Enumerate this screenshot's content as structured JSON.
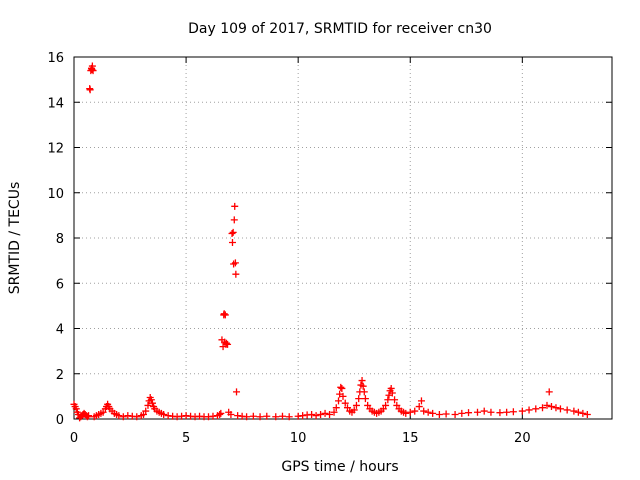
{
  "chart_data": {
    "type": "scatter",
    "title": "Day 109 of 2017, SRMTID for receiver cn30",
    "xlabel": "GPS time / hours",
    "ylabel": "SRMTID / TECUs",
    "xlim": [
      0,
      24
    ],
    "ylim": [
      0,
      16
    ],
    "xticks": [
      0,
      5,
      10,
      15,
      20
    ],
    "yticks": [
      0,
      2,
      4,
      6,
      8,
      10,
      12,
      14,
      16
    ],
    "grid": true,
    "marker": "plus",
    "series": [
      {
        "name": "SRMTID",
        "color": "#ff0000",
        "points": [
          [
            0.0,
            0.65
          ],
          [
            0.05,
            0.55
          ],
          [
            0.1,
            0.45
          ],
          [
            0.15,
            0.3
          ],
          [
            0.2,
            0.2
          ],
          [
            0.25,
            0.05
          ],
          [
            0.3,
            0.1
          ],
          [
            0.35,
            0.15
          ],
          [
            0.4,
            0.2
          ],
          [
            0.45,
            0.25
          ],
          [
            0.5,
            0.2
          ],
          [
            0.55,
            0.15
          ],
          [
            0.6,
            0.1
          ],
          [
            0.65,
            0.15
          ],
          [
            0.7,
            14.6
          ],
          [
            0.72,
            14.55
          ],
          [
            0.75,
            15.4
          ],
          [
            0.78,
            15.5
          ],
          [
            0.8,
            15.45
          ],
          [
            0.82,
            15.6
          ],
          [
            0.85,
            15.4
          ],
          [
            0.9,
            0.1
          ],
          [
            1.0,
            0.15
          ],
          [
            1.1,
            0.2
          ],
          [
            1.2,
            0.25
          ],
          [
            1.3,
            0.3
          ],
          [
            1.4,
            0.45
          ],
          [
            1.45,
            0.55
          ],
          [
            1.5,
            0.65
          ],
          [
            1.55,
            0.55
          ],
          [
            1.6,
            0.45
          ],
          [
            1.7,
            0.35
          ],
          [
            1.8,
            0.25
          ],
          [
            1.9,
            0.2
          ],
          [
            2.0,
            0.15
          ],
          [
            2.2,
            0.1
          ],
          [
            2.4,
            0.15
          ],
          [
            2.6,
            0.12
          ],
          [
            2.8,
            0.1
          ],
          [
            3.0,
            0.15
          ],
          [
            3.1,
            0.2
          ],
          [
            3.2,
            0.35
          ],
          [
            3.3,
            0.6
          ],
          [
            3.35,
            0.8
          ],
          [
            3.4,
            0.95
          ],
          [
            3.45,
            0.85
          ],
          [
            3.5,
            0.7
          ],
          [
            3.55,
            0.55
          ],
          [
            3.6,
            0.45
          ],
          [
            3.7,
            0.35
          ],
          [
            3.8,
            0.3
          ],
          [
            3.9,
            0.25
          ],
          [
            4.0,
            0.2
          ],
          [
            4.2,
            0.15
          ],
          [
            4.4,
            0.12
          ],
          [
            4.6,
            0.1
          ],
          [
            4.8,
            0.12
          ],
          [
            5.0,
            0.15
          ],
          [
            5.2,
            0.12
          ],
          [
            5.4,
            0.1
          ],
          [
            5.6,
            0.12
          ],
          [
            5.8,
            0.1
          ],
          [
            6.0,
            0.1
          ],
          [
            6.2,
            0.12
          ],
          [
            6.4,
            0.15
          ],
          [
            6.5,
            0.2
          ],
          [
            6.55,
            0.25
          ],
          [
            6.6,
            3.5
          ],
          [
            6.65,
            3.2
          ],
          [
            6.68,
            4.6
          ],
          [
            6.7,
            4.65
          ],
          [
            6.72,
            3.4
          ],
          [
            6.75,
            4.6
          ],
          [
            6.78,
            3.3
          ],
          [
            6.8,
            3.35
          ],
          [
            6.85,
            3.3
          ],
          [
            6.9,
            0.3
          ],
          [
            7.0,
            0.2
          ],
          [
            7.05,
            8.2
          ],
          [
            7.07,
            7.8
          ],
          [
            7.1,
            8.25
          ],
          [
            7.12,
            6.85
          ],
          [
            7.15,
            8.8
          ],
          [
            7.17,
            9.4
          ],
          [
            7.2,
            6.9
          ],
          [
            7.22,
            6.4
          ],
          [
            7.25,
            1.2
          ],
          [
            7.3,
            0.15
          ],
          [
            7.5,
            0.12
          ],
          [
            7.7,
            0.1
          ],
          [
            8.0,
            0.12
          ],
          [
            8.3,
            0.1
          ],
          [
            8.6,
            0.12
          ],
          [
            9.0,
            0.1
          ],
          [
            9.3,
            0.12
          ],
          [
            9.6,
            0.1
          ],
          [
            10.0,
            0.12
          ],
          [
            10.2,
            0.15
          ],
          [
            10.4,
            0.18
          ],
          [
            10.6,
            0.2
          ],
          [
            10.8,
            0.15
          ],
          [
            11.0,
            0.2
          ],
          [
            11.2,
            0.25
          ],
          [
            11.4,
            0.2
          ],
          [
            11.6,
            0.3
          ],
          [
            11.7,
            0.5
          ],
          [
            11.8,
            0.8
          ],
          [
            11.85,
            1.1
          ],
          [
            11.9,
            1.4
          ],
          [
            11.95,
            1.35
          ],
          [
            12.0,
            1.0
          ],
          [
            12.1,
            0.7
          ],
          [
            12.2,
            0.5
          ],
          [
            12.3,
            0.35
          ],
          [
            12.4,
            0.3
          ],
          [
            12.5,
            0.4
          ],
          [
            12.6,
            0.6
          ],
          [
            12.7,
            0.9
          ],
          [
            12.75,
            1.2
          ],
          [
            12.8,
            1.5
          ],
          [
            12.85,
            1.7
          ],
          [
            12.9,
            1.45
          ],
          [
            12.95,
            1.2
          ],
          [
            13.0,
            0.9
          ],
          [
            13.1,
            0.6
          ],
          [
            13.2,
            0.45
          ],
          [
            13.3,
            0.35
          ],
          [
            13.4,
            0.3
          ],
          [
            13.5,
            0.25
          ],
          [
            13.6,
            0.3
          ],
          [
            13.7,
            0.35
          ],
          [
            13.8,
            0.45
          ],
          [
            13.9,
            0.6
          ],
          [
            14.0,
            0.85
          ],
          [
            14.05,
            1.05
          ],
          [
            14.1,
            1.25
          ],
          [
            14.15,
            1.35
          ],
          [
            14.2,
            1.15
          ],
          [
            14.3,
            0.85
          ],
          [
            14.4,
            0.6
          ],
          [
            14.5,
            0.45
          ],
          [
            14.6,
            0.35
          ],
          [
            14.7,
            0.3
          ],
          [
            14.8,
            0.25
          ],
          [
            15.0,
            0.3
          ],
          [
            15.2,
            0.35
          ],
          [
            15.4,
            0.55
          ],
          [
            15.5,
            0.8
          ],
          [
            15.6,
            0.35
          ],
          [
            15.8,
            0.3
          ],
          [
            16.0,
            0.25
          ],
          [
            16.3,
            0.2
          ],
          [
            16.6,
            0.22
          ],
          [
            17.0,
            0.2
          ],
          [
            17.3,
            0.25
          ],
          [
            17.6,
            0.28
          ],
          [
            18.0,
            0.3
          ],
          [
            18.3,
            0.35
          ],
          [
            18.6,
            0.3
          ],
          [
            19.0,
            0.28
          ],
          [
            19.3,
            0.3
          ],
          [
            19.6,
            0.32
          ],
          [
            20.0,
            0.35
          ],
          [
            20.3,
            0.4
          ],
          [
            20.6,
            0.45
          ],
          [
            20.9,
            0.5
          ],
          [
            21.1,
            0.6
          ],
          [
            21.2,
            1.2
          ],
          [
            21.3,
            0.55
          ],
          [
            21.5,
            0.5
          ],
          [
            21.7,
            0.45
          ],
          [
            22.0,
            0.4
          ],
          [
            22.3,
            0.35
          ],
          [
            22.5,
            0.3
          ],
          [
            22.7,
            0.25
          ],
          [
            22.9,
            0.2
          ]
        ]
      }
    ]
  }
}
